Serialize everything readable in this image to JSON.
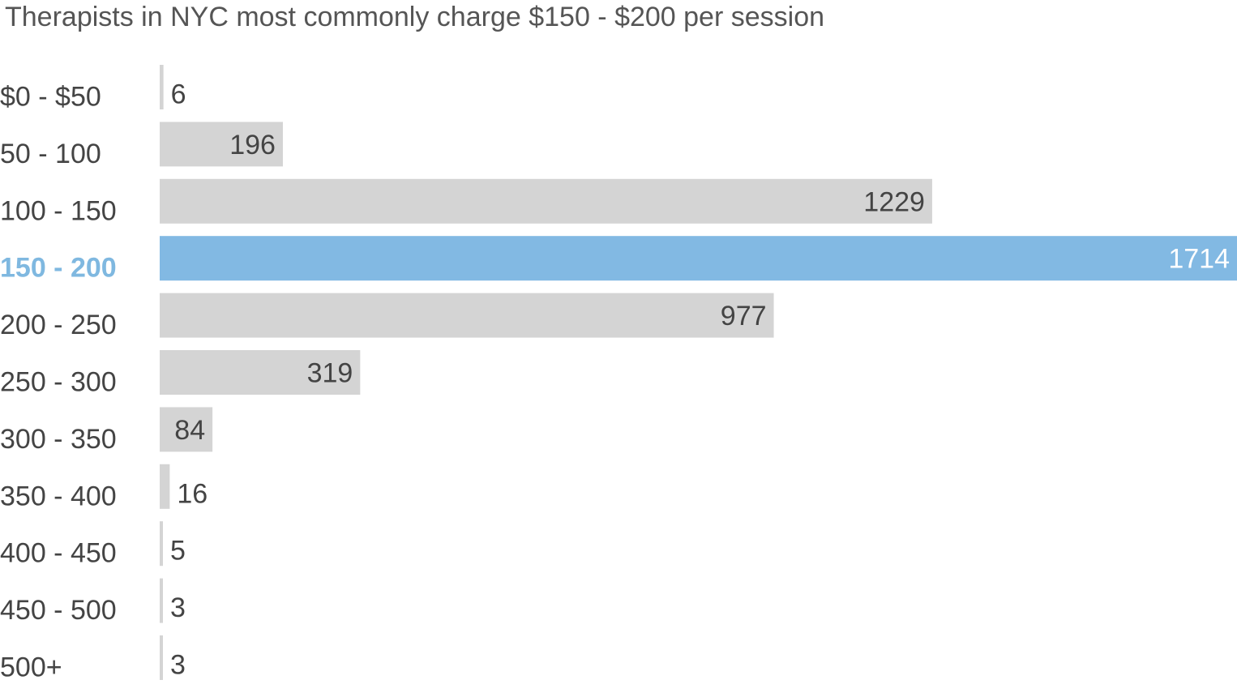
{
  "chart_data": {
    "type": "bar",
    "orientation": "horizontal",
    "title": "Therapists in NYC most commonly charge $150 - $200 per session",
    "categories": [
      "$0 - $50",
      "50 - 100",
      "100 - 150",
      "150 - 200",
      "200 - 250",
      "250 - 300",
      "300 - 350",
      "350 - 400",
      "400 - 450",
      "450 - 500",
      "500+"
    ],
    "values": [
      6,
      196,
      1229,
      1714,
      977,
      319,
      84,
      16,
      5,
      3,
      3
    ],
    "highlight_category": "150 - 200",
    "xlim": [
      0,
      1714
    ],
    "grid": false,
    "legend": "none",
    "colors": {
      "bar": "#d4d4d4",
      "highlight_bar": "#82b9e3",
      "highlight_label": "#7fb8e0",
      "text": "#444444",
      "title": "#555555"
    }
  }
}
